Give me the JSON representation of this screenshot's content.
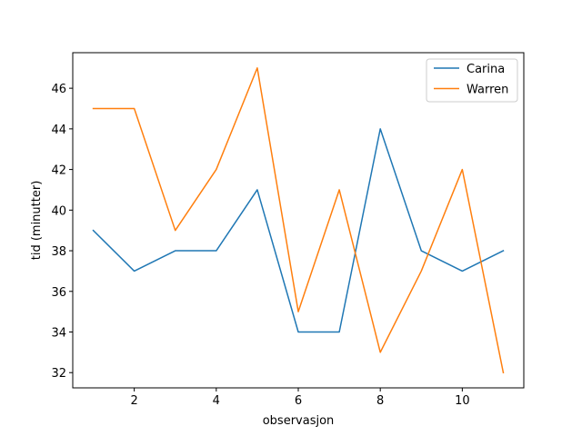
{
  "chart_data": {
    "type": "line",
    "title": "",
    "xlabel": "observasjon",
    "ylabel": "tid (minutter)",
    "x": [
      1,
      2,
      3,
      4,
      5,
      6,
      7,
      8,
      9,
      10,
      11
    ],
    "series": [
      {
        "name": "Carina",
        "color": "#1f77b4",
        "values": [
          39,
          37,
          38,
          38,
          41,
          34,
          34,
          44,
          38,
          37,
          38
        ]
      },
      {
        "name": "Warren",
        "color": "#ff7f0e",
        "values": [
          45,
          45,
          39,
          42,
          47,
          35,
          41,
          33,
          37,
          42,
          32
        ]
      }
    ],
    "xlim": [
      0.5,
      11.5
    ],
    "ylim": [
      31.25,
      47.75
    ],
    "xticks": [
      2,
      4,
      6,
      8,
      10
    ],
    "yticks": [
      32,
      34,
      36,
      38,
      40,
      42,
      44,
      46
    ],
    "grid": false,
    "legend_position": "top-right"
  }
}
